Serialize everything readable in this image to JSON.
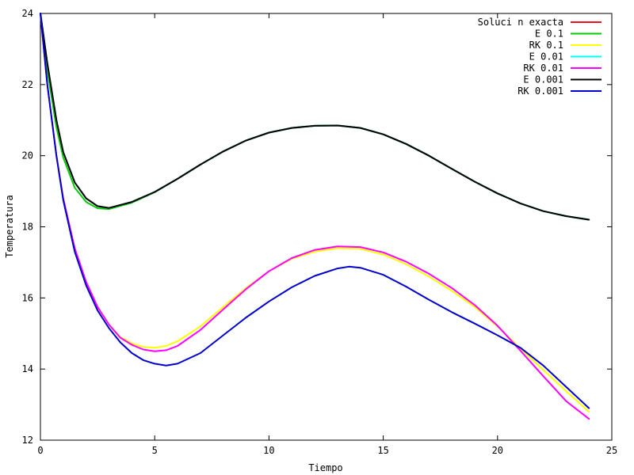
{
  "chart_data": {
    "type": "line",
    "title": "",
    "xlabel": "Tiempo",
    "ylabel": "Temperatura",
    "xlim": [
      0,
      25
    ],
    "ylim": [
      12,
      24
    ],
    "x_ticks": [
      0,
      5,
      10,
      15,
      20,
      25
    ],
    "y_ticks": [
      12,
      14,
      16,
      18,
      20,
      22,
      24
    ],
    "x_tick_labels": [
      "0",
      "5",
      "10",
      "15",
      "20",
      "25"
    ],
    "y_tick_labels": [
      "12",
      "14",
      "16",
      "18",
      "20",
      "22",
      "24"
    ],
    "grid": false,
    "legend_position": "top-right",
    "series": [
      {
        "name": "Soluci n exacta",
        "color": "#e8141a",
        "points": [
          [
            0,
            24
          ],
          [
            0.3,
            22.6
          ],
          [
            0.7,
            21.0
          ],
          [
            1.0,
            20.1
          ],
          [
            1.5,
            19.25
          ],
          [
            2.0,
            18.8
          ],
          [
            2.5,
            18.58
          ],
          [
            3.0,
            18.53
          ],
          [
            4.0,
            18.7
          ],
          [
            5.0,
            18.98
          ],
          [
            6.0,
            19.35
          ],
          [
            7.0,
            19.75
          ],
          [
            8.0,
            20.12
          ],
          [
            9.0,
            20.43
          ],
          [
            10.0,
            20.65
          ],
          [
            11.0,
            20.78
          ],
          [
            12.0,
            20.84
          ],
          [
            13.0,
            20.85
          ],
          [
            14.0,
            20.78
          ],
          [
            15.0,
            20.6
          ],
          [
            16.0,
            20.33
          ],
          [
            17.0,
            20.0
          ],
          [
            18.0,
            19.63
          ],
          [
            19.0,
            19.27
          ],
          [
            20.0,
            18.94
          ],
          [
            21.0,
            18.66
          ],
          [
            22.0,
            18.44
          ],
          [
            23.0,
            18.3
          ],
          [
            24.0,
            18.2
          ]
        ]
      },
      {
        "name": "E 0.1",
        "color": "#00cc00",
        "points": [
          [
            0,
            24
          ],
          [
            0.3,
            22.4
          ],
          [
            0.7,
            20.8
          ],
          [
            1.0,
            19.95
          ],
          [
            1.5,
            19.1
          ],
          [
            2.0,
            18.7
          ],
          [
            2.5,
            18.52
          ],
          [
            3.0,
            18.5
          ],
          [
            4.0,
            18.68
          ],
          [
            5.0,
            18.97
          ],
          [
            6.0,
            19.35
          ],
          [
            7.0,
            19.75
          ],
          [
            8.0,
            20.12
          ],
          [
            9.0,
            20.43
          ],
          [
            10.0,
            20.65
          ],
          [
            11.0,
            20.78
          ],
          [
            12.0,
            20.84
          ],
          [
            13.0,
            20.85
          ],
          [
            14.0,
            20.78
          ],
          [
            15.0,
            20.6
          ],
          [
            16.0,
            20.33
          ],
          [
            17.0,
            20.0
          ],
          [
            18.0,
            19.63
          ],
          [
            19.0,
            19.27
          ],
          [
            20.0,
            18.94
          ],
          [
            21.0,
            18.66
          ],
          [
            22.0,
            18.44
          ],
          [
            23.0,
            18.3
          ],
          [
            24.0,
            18.2
          ]
        ]
      },
      {
        "name": "RK 0.1",
        "color": "#ffff00",
        "points": [
          [
            0,
            24
          ],
          [
            0.3,
            22.0
          ],
          [
            0.7,
            20.0
          ],
          [
            1.0,
            18.8
          ],
          [
            1.5,
            17.4
          ],
          [
            2.0,
            16.45
          ],
          [
            2.5,
            15.75
          ],
          [
            3.0,
            15.25
          ],
          [
            3.5,
            14.9
          ],
          [
            4.0,
            14.72
          ],
          [
            4.5,
            14.62
          ],
          [
            5.0,
            14.6
          ],
          [
            5.5,
            14.65
          ],
          [
            6.0,
            14.78
          ],
          [
            7.0,
            15.2
          ],
          [
            8.0,
            15.75
          ],
          [
            9.0,
            16.28
          ],
          [
            10.0,
            16.75
          ],
          [
            11.0,
            17.1
          ],
          [
            12.0,
            17.3
          ],
          [
            13.0,
            17.4
          ],
          [
            14.0,
            17.38
          ],
          [
            15.0,
            17.22
          ],
          [
            16.0,
            16.95
          ],
          [
            17.0,
            16.6
          ],
          [
            18.0,
            16.2
          ],
          [
            19.0,
            15.75
          ],
          [
            20.0,
            15.2
          ],
          [
            21.0,
            14.58
          ],
          [
            22.0,
            13.98
          ],
          [
            23.0,
            13.38
          ],
          [
            24.0,
            12.8
          ]
        ]
      },
      {
        "name": "E 0.01",
        "color": "#00ffff",
        "points": [
          [
            0,
            24
          ],
          [
            0.3,
            22.6
          ],
          [
            0.7,
            21.0
          ],
          [
            1.0,
            20.1
          ],
          [
            1.5,
            19.25
          ],
          [
            2.0,
            18.8
          ],
          [
            2.5,
            18.58
          ],
          [
            3.0,
            18.53
          ],
          [
            4.0,
            18.7
          ],
          [
            5.0,
            18.98
          ],
          [
            6.0,
            19.35
          ],
          [
            7.0,
            19.75
          ],
          [
            8.0,
            20.12
          ],
          [
            9.0,
            20.43
          ],
          [
            10.0,
            20.65
          ],
          [
            11.0,
            20.78
          ],
          [
            12.0,
            20.84
          ],
          [
            13.0,
            20.85
          ],
          [
            14.0,
            20.78
          ],
          [
            15.0,
            20.6
          ],
          [
            16.0,
            20.33
          ],
          [
            17.0,
            20.0
          ],
          [
            18.0,
            19.63
          ],
          [
            19.0,
            19.27
          ],
          [
            20.0,
            18.94
          ],
          [
            21.0,
            18.66
          ],
          [
            22.0,
            18.44
          ],
          [
            23.0,
            18.3
          ],
          [
            24.0,
            18.2
          ]
        ]
      },
      {
        "name": "RK 0.01",
        "color": "#ff00ff",
        "points": [
          [
            0,
            24
          ],
          [
            0.3,
            22.0
          ],
          [
            0.7,
            20.0
          ],
          [
            1.0,
            18.8
          ],
          [
            1.5,
            17.4
          ],
          [
            2.0,
            16.45
          ],
          [
            2.5,
            15.75
          ],
          [
            3.0,
            15.25
          ],
          [
            3.5,
            14.88
          ],
          [
            4.0,
            14.68
          ],
          [
            4.5,
            14.55
          ],
          [
            5.0,
            14.5
          ],
          [
            5.5,
            14.53
          ],
          [
            6.0,
            14.65
          ],
          [
            7.0,
            15.1
          ],
          [
            8.0,
            15.68
          ],
          [
            9.0,
            16.25
          ],
          [
            10.0,
            16.75
          ],
          [
            11.0,
            17.12
          ],
          [
            12.0,
            17.35
          ],
          [
            13.0,
            17.45
          ],
          [
            14.0,
            17.43
          ],
          [
            15.0,
            17.28
          ],
          [
            16.0,
            17.02
          ],
          [
            17.0,
            16.68
          ],
          [
            18.0,
            16.28
          ],
          [
            19.0,
            15.8
          ],
          [
            20.0,
            15.22
          ],
          [
            21.0,
            14.52
          ],
          [
            22.0,
            13.8
          ],
          [
            23.0,
            13.1
          ],
          [
            24.0,
            12.6
          ]
        ]
      },
      {
        "name": "E 0.001",
        "color": "#000000",
        "points": [
          [
            0,
            24
          ],
          [
            0.3,
            22.6
          ],
          [
            0.7,
            21.0
          ],
          [
            1.0,
            20.1
          ],
          [
            1.5,
            19.25
          ],
          [
            2.0,
            18.8
          ],
          [
            2.5,
            18.58
          ],
          [
            3.0,
            18.53
          ],
          [
            4.0,
            18.7
          ],
          [
            5.0,
            18.98
          ],
          [
            6.0,
            19.35
          ],
          [
            7.0,
            19.75
          ],
          [
            8.0,
            20.12
          ],
          [
            9.0,
            20.43
          ],
          [
            10.0,
            20.65
          ],
          [
            11.0,
            20.78
          ],
          [
            12.0,
            20.84
          ],
          [
            13.0,
            20.85
          ],
          [
            14.0,
            20.78
          ],
          [
            15.0,
            20.6
          ],
          [
            16.0,
            20.33
          ],
          [
            17.0,
            20.0
          ],
          [
            18.0,
            19.63
          ],
          [
            19.0,
            19.27
          ],
          [
            20.0,
            18.94
          ],
          [
            21.0,
            18.66
          ],
          [
            22.0,
            18.44
          ],
          [
            23.0,
            18.3
          ],
          [
            24.0,
            18.2
          ]
        ]
      },
      {
        "name": "RK 0.001",
        "color": "#0000cc",
        "points": [
          [
            0,
            24
          ],
          [
            0.3,
            22.0
          ],
          [
            0.7,
            20.0
          ],
          [
            1.0,
            18.75
          ],
          [
            1.5,
            17.3
          ],
          [
            2.0,
            16.35
          ],
          [
            2.5,
            15.65
          ],
          [
            3.0,
            15.15
          ],
          [
            3.5,
            14.75
          ],
          [
            4.0,
            14.45
          ],
          [
            4.5,
            14.25
          ],
          [
            5.0,
            14.15
          ],
          [
            5.5,
            14.1
          ],
          [
            6.0,
            14.15
          ],
          [
            7.0,
            14.45
          ],
          [
            8.0,
            14.95
          ],
          [
            9.0,
            15.45
          ],
          [
            10.0,
            15.9
          ],
          [
            11.0,
            16.3
          ],
          [
            12.0,
            16.62
          ],
          [
            13.0,
            16.83
          ],
          [
            13.5,
            16.88
          ],
          [
            14.0,
            16.85
          ],
          [
            15.0,
            16.65
          ],
          [
            16.0,
            16.32
          ],
          [
            17.0,
            15.95
          ],
          [
            18.0,
            15.6
          ],
          [
            19.0,
            15.28
          ],
          [
            20.0,
            14.95
          ],
          [
            21.0,
            14.6
          ],
          [
            22.0,
            14.1
          ],
          [
            23.0,
            13.5
          ],
          [
            24.0,
            12.9
          ]
        ]
      }
    ]
  }
}
